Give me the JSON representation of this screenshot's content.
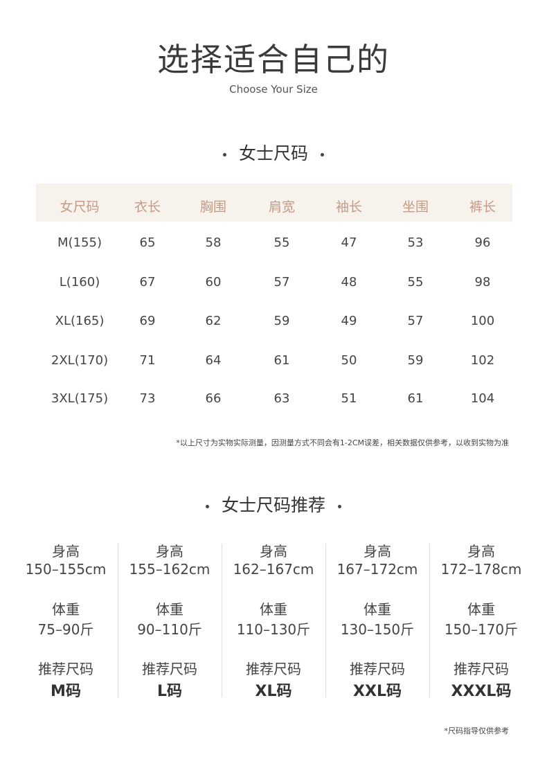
{
  "title": "选择适合自己的",
  "subtitle": "Choose Your Size",
  "size_table": {
    "section_title": "女士尺码",
    "headers": [
      "女尺码",
      "衣长",
      "胸围",
      "肩宽",
      "袖长",
      "坐围",
      "裤长"
    ],
    "rows": [
      [
        "M(155)",
        "65",
        "58",
        "55",
        "47",
        "53",
        "96"
      ],
      [
        "L(160)",
        "67",
        "60",
        "57",
        "48",
        "55",
        "98"
      ],
      [
        "XL(165)",
        "69",
        "62",
        "59",
        "49",
        "57",
        "100"
      ],
      [
        "2XL(170)",
        "71",
        "64",
        "61",
        "50",
        "59",
        "102"
      ],
      [
        "3XL(175)",
        "73",
        "66",
        "63",
        "51",
        "61",
        "104"
      ]
    ],
    "note": "*以上尺寸为实物实际测量，因测量方式不同会有1-2CM误差，相关数据仅供参考，以收到实物为准",
    "header_bg": "#f8f2ed",
    "header_color": "#c49a85"
  },
  "recommend": {
    "section_title": "女士尺码推荐",
    "height_label": "身高",
    "weight_label": "体重",
    "size_label": "推荐尺码",
    "columns": [
      {
        "height": "150–155cm",
        "weight": "75–90斤",
        "size": "M码"
      },
      {
        "height": "155–162cm",
        "weight": "90–110斤",
        "size": "L码"
      },
      {
        "height": "162–167cm",
        "weight": "110–130斤",
        "size": "XL码"
      },
      {
        "height": "167–172cm",
        "weight": "130–150斤",
        "size": "XXL码"
      },
      {
        "height": "172–178cm",
        "weight": "150–170斤",
        "size": "XXXL码"
      }
    ],
    "note": "*尺码指导仅供参考"
  }
}
